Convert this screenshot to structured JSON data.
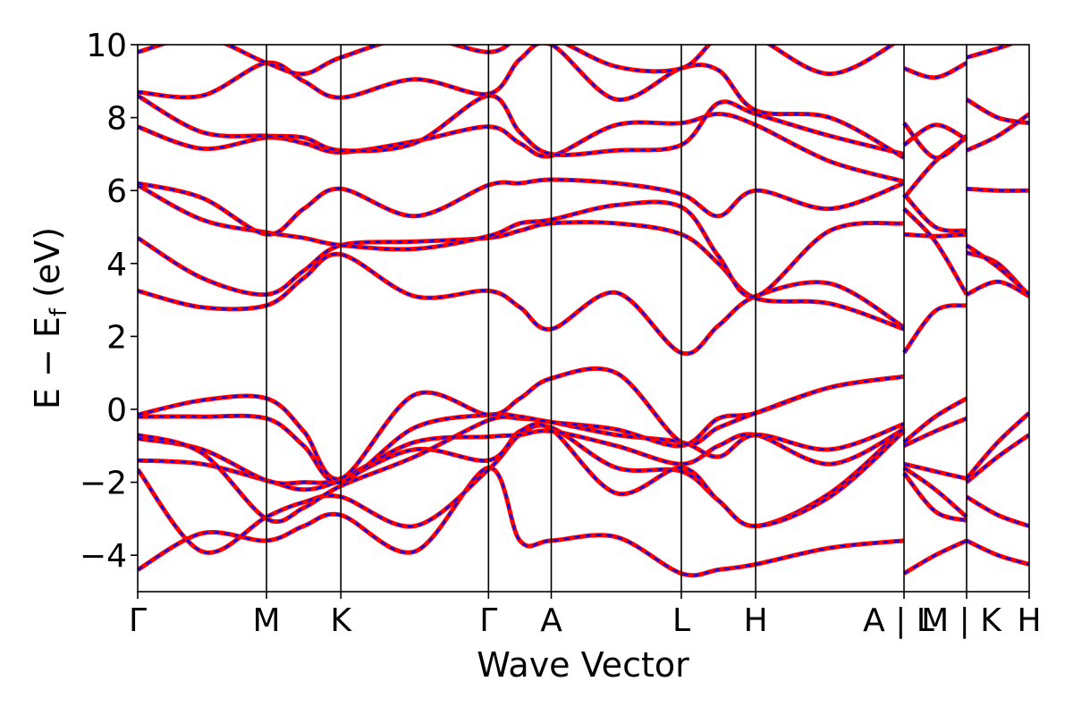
{
  "chart_data": {
    "type": "line",
    "xlabel": "Wave Vector",
    "ylabel_parts": {
      "main": "E − E",
      "subscript": "f",
      "unit": " (eV)"
    },
    "ylim": [
      -5,
      10
    ],
    "y_ticks": [
      -4,
      -2,
      0,
      2,
      4,
      6,
      8,
      10
    ],
    "y_tick_labels": [
      "−4",
      "−2",
      "0",
      "2",
      "4",
      "6",
      "8",
      "10"
    ],
    "x_range": [
      0,
      1
    ],
    "high_symmetry_points": [
      {
        "label": "Γ",
        "x": 0.0
      },
      {
        "label": "M",
        "x": 0.1445
      },
      {
        "label": "K",
        "x": 0.2279
      },
      {
        "label": "Γ",
        "x": 0.3935
      },
      {
        "label": "A",
        "x": 0.4639
      },
      {
        "label": "L",
        "x": 0.6098
      },
      {
        "label": "H",
        "x": 0.6932
      },
      {
        "label": "A | L",
        "x": 0.8596
      },
      {
        "label": "M | K",
        "x": 0.9298
      },
      {
        "label": "H",
        "x": 1.0
      }
    ],
    "segment_breaks": [
      0.8596,
      0.9298
    ],
    "series_styles": [
      {
        "color": "#ff0000",
        "style": "solid"
      },
      {
        "color": "#0000ff",
        "style": "dashed"
      }
    ],
    "bands": [
      [
        [
          0.0,
          -4.4
        ],
        [
          0.0723,
          -3.4
        ],
        [
          0.1445,
          -3.6
        ],
        [
          0.1862,
          -3.2
        ],
        [
          0.2279,
          -2.9
        ],
        [
          0.3107,
          -3.9
        ],
        [
          0.3935,
          -1.6
        ],
        [
          0.4287,
          -3.6
        ],
        [
          0.4639,
          -3.6
        ],
        [
          0.5368,
          -3.5
        ],
        [
          0.6098,
          -4.5
        ],
        [
          0.6515,
          -4.4
        ],
        [
          0.6932,
          -4.25
        ],
        [
          0.7764,
          -3.8
        ],
        [
          0.8596,
          -3.6
        ]
      ],
      [
        [
          0.0,
          -1.65
        ],
        [
          0.0723,
          -3.9
        ],
        [
          0.1445,
          -2.95
        ],
        [
          0.1862,
          -2.55
        ],
        [
          0.2279,
          -2.4
        ],
        [
          0.3107,
          -3.2
        ],
        [
          0.3935,
          -1.65
        ],
        [
          0.4287,
          -0.7
        ],
        [
          0.4639,
          -0.5
        ],
        [
          0.5368,
          -1.6
        ],
        [
          0.6098,
          -1.7
        ],
        [
          0.6515,
          -2.5
        ],
        [
          0.6932,
          -3.2
        ],
        [
          0.7764,
          -2.3
        ],
        [
          0.8596,
          -0.5
        ]
      ],
      [
        [
          0.0,
          -1.4
        ],
        [
          0.0723,
          -1.5
        ],
        [
          0.1445,
          -1.95
        ],
        [
          0.1862,
          -2.2
        ],
        [
          0.2279,
          -1.95
        ],
        [
          0.3107,
          -1.1
        ],
        [
          0.3935,
          -1.4
        ],
        [
          0.4287,
          -0.6
        ],
        [
          0.4639,
          -0.55
        ],
        [
          0.5368,
          -2.3
        ],
        [
          0.6098,
          -1.6
        ],
        [
          0.6515,
          -2.5
        ],
        [
          0.6932,
          -3.2
        ],
        [
          0.7764,
          -2.4
        ],
        [
          0.8596,
          -0.6
        ]
      ],
      [
        [
          0.0,
          -0.8
        ],
        [
          0.0723,
          -1.1
        ],
        [
          0.1445,
          -1.95
        ],
        [
          0.1862,
          -2.0
        ],
        [
          0.2279,
          -1.9
        ],
        [
          0.3107,
          -0.9
        ],
        [
          0.3935,
          -0.75
        ],
        [
          0.4287,
          -0.7
        ],
        [
          0.4639,
          -0.6
        ],
        [
          0.5368,
          -1.0
        ],
        [
          0.6098,
          -1.5
        ],
        [
          0.6515,
          -1.0
        ],
        [
          0.6932,
          -0.7
        ],
        [
          0.7764,
          -1.5
        ],
        [
          0.8596,
          -0.55
        ]
      ],
      [
        [
          0.0,
          -0.7
        ],
        [
          0.0723,
          -1.2
        ],
        [
          0.1445,
          -3.0
        ],
        [
          0.1862,
          -2.7
        ],
        [
          0.2279,
          -2.1
        ],
        [
          0.3107,
          -1.3
        ],
        [
          0.3935,
          -0.3
        ],
        [
          0.4287,
          -0.25
        ],
        [
          0.4639,
          -0.35
        ],
        [
          0.5368,
          -0.7
        ],
        [
          0.6098,
          -0.9
        ],
        [
          0.6515,
          -1.3
        ],
        [
          0.6932,
          -0.7
        ],
        [
          0.7764,
          -1.1
        ],
        [
          0.8596,
          -0.4
        ]
      ],
      [
        [
          0.0,
          -0.2
        ],
        [
          0.0723,
          -0.2
        ],
        [
          0.1445,
          -0.25
        ],
        [
          0.1862,
          -1.0
        ],
        [
          0.2279,
          -2.0
        ],
        [
          0.3107,
          -0.5
        ],
        [
          0.3935,
          -0.15
        ],
        [
          0.4287,
          -0.2
        ],
        [
          0.4639,
          -0.35
        ],
        [
          0.5368,
          -0.55
        ],
        [
          0.6098,
          -1.0
        ],
        [
          0.6515,
          -0.25
        ],
        [
          0.6932,
          -0.1
        ],
        [
          0.7764,
          0.6
        ],
        [
          0.8596,
          0.9
        ]
      ],
      [
        [
          0.0,
          -0.15
        ],
        [
          0.0723,
          0.25
        ],
        [
          0.1445,
          0.3
        ],
        [
          0.1862,
          -0.6
        ],
        [
          0.2279,
          -1.9
        ],
        [
          0.3107,
          0.4
        ],
        [
          0.3935,
          -0.15
        ],
        [
          0.4287,
          0.3
        ],
        [
          0.4639,
          0.85
        ],
        [
          0.5368,
          1.0
        ],
        [
          0.6098,
          -0.9
        ],
        [
          0.6515,
          -0.5
        ],
        [
          0.6932,
          -0.1
        ],
        [
          0.7764,
          0.6
        ],
        [
          0.8596,
          0.9
        ]
      ],
      [
        [
          0.0,
          3.25
        ],
        [
          0.0723,
          2.8
        ],
        [
          0.1445,
          2.85
        ],
        [
          0.1862,
          3.6
        ],
        [
          0.2279,
          4.25
        ],
        [
          0.3107,
          3.1
        ],
        [
          0.3935,
          3.25
        ],
        [
          0.4287,
          2.8
        ],
        [
          0.4639,
          2.2
        ],
        [
          0.5368,
          3.2
        ],
        [
          0.6098,
          1.55
        ],
        [
          0.6515,
          2.3
        ],
        [
          0.6932,
          3.1
        ],
        [
          0.7764,
          3.45
        ],
        [
          0.8596,
          2.25
        ]
      ],
      [
        [
          0.0,
          4.7
        ],
        [
          0.0723,
          3.6
        ],
        [
          0.1445,
          3.15
        ],
        [
          0.1862,
          3.8
        ],
        [
          0.2279,
          4.5
        ],
        [
          0.3107,
          4.6
        ],
        [
          0.3935,
          4.7
        ],
        [
          0.4287,
          4.9
        ],
        [
          0.4639,
          5.1
        ],
        [
          0.5368,
          5.1
        ],
        [
          0.6098,
          4.8
        ],
        [
          0.6515,
          4.0
        ],
        [
          0.6932,
          3.05
        ],
        [
          0.7764,
          2.9
        ],
        [
          0.8596,
          2.2
        ]
      ],
      [
        [
          0.0,
          6.15
        ],
        [
          0.0723,
          5.2
        ],
        [
          0.1445,
          4.85
        ],
        [
          0.1862,
          4.7
        ],
        [
          0.2279,
          4.5
        ],
        [
          0.3107,
          4.4
        ],
        [
          0.3935,
          4.75
        ],
        [
          0.4287,
          5.1
        ],
        [
          0.4639,
          5.2
        ],
        [
          0.5368,
          5.6
        ],
        [
          0.6098,
          5.55
        ],
        [
          0.6515,
          4.2
        ],
        [
          0.6932,
          3.1
        ],
        [
          0.7764,
          4.9
        ],
        [
          0.8596,
          5.1
        ]
      ],
      [
        [
          0.0,
          6.2
        ],
        [
          0.0723,
          5.8
        ],
        [
          0.1445,
          4.8
        ],
        [
          0.1862,
          5.5
        ],
        [
          0.2279,
          6.05
        ],
        [
          0.3107,
          5.3
        ],
        [
          0.3935,
          6.15
        ],
        [
          0.4287,
          6.2
        ],
        [
          0.4639,
          6.3
        ],
        [
          0.5368,
          6.2
        ],
        [
          0.6098,
          5.9
        ],
        [
          0.6515,
          5.3
        ],
        [
          0.6932,
          6.0
        ],
        [
          0.7764,
          5.5
        ],
        [
          0.8596,
          6.2
        ]
      ],
      [
        [
          0.0,
          7.75
        ],
        [
          0.0723,
          7.15
        ],
        [
          0.1445,
          7.45
        ],
        [
          0.1862,
          7.3
        ],
        [
          0.2279,
          7.05
        ],
        [
          0.3107,
          7.35
        ],
        [
          0.3935,
          7.75
        ],
        [
          0.4287,
          7.3
        ],
        [
          0.4639,
          6.95
        ],
        [
          0.5368,
          7.8
        ],
        [
          0.6098,
          7.85
        ],
        [
          0.6515,
          8.1
        ],
        [
          0.6932,
          7.8
        ],
        [
          0.7764,
          6.8
        ],
        [
          0.8596,
          6.25
        ]
      ],
      [
        [
          0.0,
          8.6
        ],
        [
          0.0723,
          7.6
        ],
        [
          0.1445,
          7.5
        ],
        [
          0.1862,
          7.45
        ],
        [
          0.2279,
          7.1
        ],
        [
          0.3107,
          7.3
        ],
        [
          0.3935,
          8.6
        ],
        [
          0.4287,
          7.6
        ],
        [
          0.4639,
          7.0
        ],
        [
          0.5368,
          7.1
        ],
        [
          0.6098,
          7.25
        ],
        [
          0.6515,
          8.4
        ],
        [
          0.6932,
          8.1
        ],
        [
          0.7764,
          7.5
        ],
        [
          0.8596,
          7.0
        ]
      ],
      [
        [
          0.0,
          8.7
        ],
        [
          0.0723,
          8.6
        ],
        [
          0.1445,
          9.5
        ],
        [
          0.1862,
          9.0
        ],
        [
          0.2279,
          8.55
        ],
        [
          0.3107,
          9.05
        ],
        [
          0.3935,
          8.65
        ],
        [
          0.4287,
          9.6
        ],
        [
          0.4639,
          10.0
        ],
        [
          0.5368,
          8.5
        ],
        [
          0.6098,
          9.35
        ],
        [
          0.6515,
          9.3
        ],
        [
          0.6932,
          8.2
        ],
        [
          0.7764,
          8.0
        ],
        [
          0.8596,
          6.9
        ]
      ],
      [
        [
          0.0,
          9.8
        ],
        [
          0.0723,
          10.2
        ],
        [
          0.1445,
          9.5
        ],
        [
          0.1862,
          9.2
        ],
        [
          0.2279,
          9.65
        ],
        [
          0.3107,
          10.2
        ],
        [
          0.3935,
          9.8
        ],
        [
          0.4287,
          10.2
        ],
        [
          0.4639,
          10.2
        ],
        [
          0.5368,
          9.4
        ],
        [
          0.6098,
          9.35
        ],
        [
          0.6515,
          10.2
        ],
        [
          0.6932,
          10.2
        ],
        [
          0.7764,
          9.2
        ],
        [
          0.8596,
          10.2
        ]
      ],
      [
        [
          0.8596,
          -4.5
        ],
        [
          0.8947,
          -4.0
        ],
        [
          0.9298,
          -3.6
        ]
      ],
      [
        [
          0.8596,
          -1.75
        ],
        [
          0.8947,
          -2.8
        ],
        [
          0.9298,
          -3.05
        ]
      ],
      [
        [
          0.8596,
          -1.6
        ],
        [
          0.8947,
          -2.2
        ],
        [
          0.9298,
          -2.95
        ]
      ],
      [
        [
          0.8596,
          -1.5
        ],
        [
          0.8947,
          -1.7
        ],
        [
          0.9298,
          -1.9
        ]
      ],
      [
        [
          0.8596,
          -1.0
        ],
        [
          0.8947,
          -0.6
        ],
        [
          0.9298,
          -0.25
        ]
      ],
      [
        [
          0.8596,
          -0.9
        ],
        [
          0.8947,
          -0.2
        ],
        [
          0.9298,
          0.3
        ]
      ],
      [
        [
          0.8596,
          1.55
        ],
        [
          0.8947,
          2.7
        ],
        [
          0.9298,
          2.85
        ]
      ],
      [
        [
          0.8596,
          4.8
        ],
        [
          0.8947,
          4.75
        ],
        [
          0.9298,
          4.8
        ]
      ],
      [
        [
          0.8596,
          5.5
        ],
        [
          0.8947,
          4.6
        ],
        [
          0.9298,
          3.15
        ]
      ],
      [
        [
          0.8596,
          5.9
        ],
        [
          0.8947,
          5.0
        ],
        [
          0.9298,
          4.9
        ]
      ],
      [
        [
          0.8596,
          5.8
        ],
        [
          0.8947,
          6.8
        ],
        [
          0.9298,
          7.45
        ]
      ],
      [
        [
          0.8596,
          7.25
        ],
        [
          0.8947,
          7.8
        ],
        [
          0.9298,
          7.4
        ]
      ],
      [
        [
          0.8596,
          7.85
        ],
        [
          0.8947,
          6.9
        ],
        [
          0.9298,
          7.5
        ]
      ],
      [
        [
          0.8596,
          9.35
        ],
        [
          0.8947,
          9.1
        ],
        [
          0.9298,
          9.5
        ]
      ],
      [
        [
          0.9298,
          -3.6
        ],
        [
          0.9649,
          -4.0
        ],
        [
          1.0,
          -4.25
        ]
      ],
      [
        [
          0.9298,
          -2.4
        ],
        [
          0.9649,
          -2.9
        ],
        [
          1.0,
          -3.2
        ]
      ],
      [
        [
          0.9298,
          -2.0
        ],
        [
          0.9649,
          -1.3
        ],
        [
          1.0,
          -0.7
        ]
      ],
      [
        [
          0.9298,
          -1.9
        ],
        [
          0.9649,
          -0.9
        ],
        [
          1.0,
          -0.1
        ]
      ],
      [
        [
          0.9298,
          3.15
        ],
        [
          0.9649,
          3.5
        ],
        [
          1.0,
          3.1
        ]
      ],
      [
        [
          0.9298,
          4.3
        ],
        [
          0.9649,
          4.0
        ],
        [
          1.0,
          3.1
        ]
      ],
      [
        [
          0.9298,
          4.5
        ],
        [
          0.9649,
          3.9
        ],
        [
          1.0,
          3.15
        ]
      ],
      [
        [
          0.9298,
          6.05
        ],
        [
          0.9649,
          6.0
        ],
        [
          1.0,
          6.0
        ]
      ],
      [
        [
          0.9298,
          7.1
        ],
        [
          0.9649,
          7.5
        ],
        [
          1.0,
          8.1
        ]
      ],
      [
        [
          0.9298,
          8.5
        ],
        [
          0.9649,
          8.0
        ],
        [
          1.0,
          7.85
        ]
      ],
      [
        [
          0.9298,
          9.65
        ],
        [
          0.9649,
          9.9
        ],
        [
          1.0,
          10.2
        ]
      ]
    ]
  }
}
